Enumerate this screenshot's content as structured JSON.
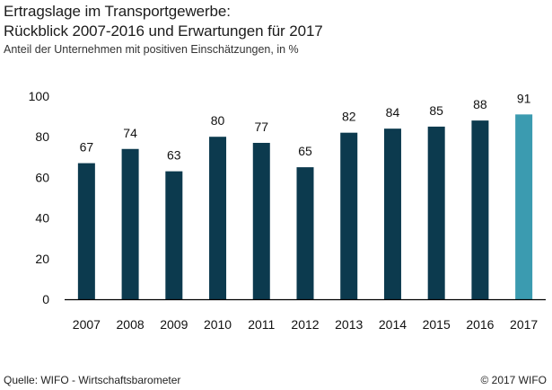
{
  "header": {
    "title_line1": "Ertragslage im Transportgewerbe:",
    "title_line2": "Rückblick 2007-2016 und Erwartungen für 2017",
    "subtitle": "Anteil der Unternehmen mit positiven Einschätzungen, in %"
  },
  "footer": {
    "source": "Quelle: WIFO - Wirtschaftsbarometer",
    "copyright": "© 2017 WIFO"
  },
  "colors": {
    "bar": "#0c3a4e",
    "bar_highlight": "#3b9bb0",
    "axis": "#000000"
  },
  "chart_data": {
    "type": "bar",
    "title": "Ertragslage im Transportgewerbe: Rückblick 2007-2016 und Erwartungen für 2017",
    "subtitle": "Anteil der Unternehmen mit positiven Einschätzungen, in %",
    "categories": [
      "2007",
      "2008",
      "2009",
      "2010",
      "2011",
      "2012",
      "2013",
      "2014",
      "2015",
      "2016",
      "2017"
    ],
    "values": [
      67,
      74,
      63,
      80,
      77,
      65,
      82,
      84,
      85,
      88,
      91
    ],
    "data_labels": [
      "67",
      "74",
      "63",
      "80",
      "77",
      "65",
      "82",
      "84",
      "85",
      "88",
      "91"
    ],
    "highlight_categories": [
      "2017"
    ],
    "ylim": [
      0,
      100
    ],
    "yticks": [
      0,
      20,
      40,
      60,
      80,
      100
    ],
    "ytick_labels": [
      "0",
      "20",
      "40",
      "60",
      "80",
      "100"
    ],
    "xlabel": "",
    "ylabel": "",
    "grid": false,
    "legend": "none"
  }
}
